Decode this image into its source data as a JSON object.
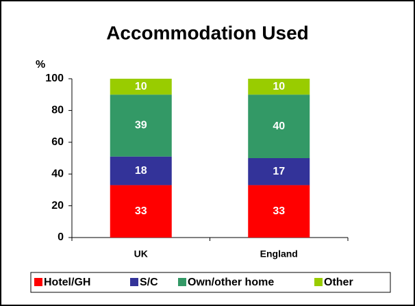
{
  "chart_data": {
    "type": "stacked-bar",
    "title": "Accommodation Used",
    "ylabel": "%",
    "categories": [
      "UK",
      "England"
    ],
    "series": [
      {
        "name": "Hotel/GH",
        "color": "#ff0000",
        "values": [
          33,
          33
        ]
      },
      {
        "name": "S/C",
        "color": "#333399",
        "values": [
          18,
          17
        ]
      },
      {
        "name": "Own/other home",
        "color": "#339966",
        "values": [
          39,
          40
        ]
      },
      {
        "name": "Other",
        "color": "#99cc00",
        "values": [
          10,
          10
        ]
      }
    ],
    "ylim": [
      0,
      100
    ],
    "yticks": [
      0,
      20,
      40,
      60,
      80,
      100
    ],
    "legend": "bottom"
  }
}
